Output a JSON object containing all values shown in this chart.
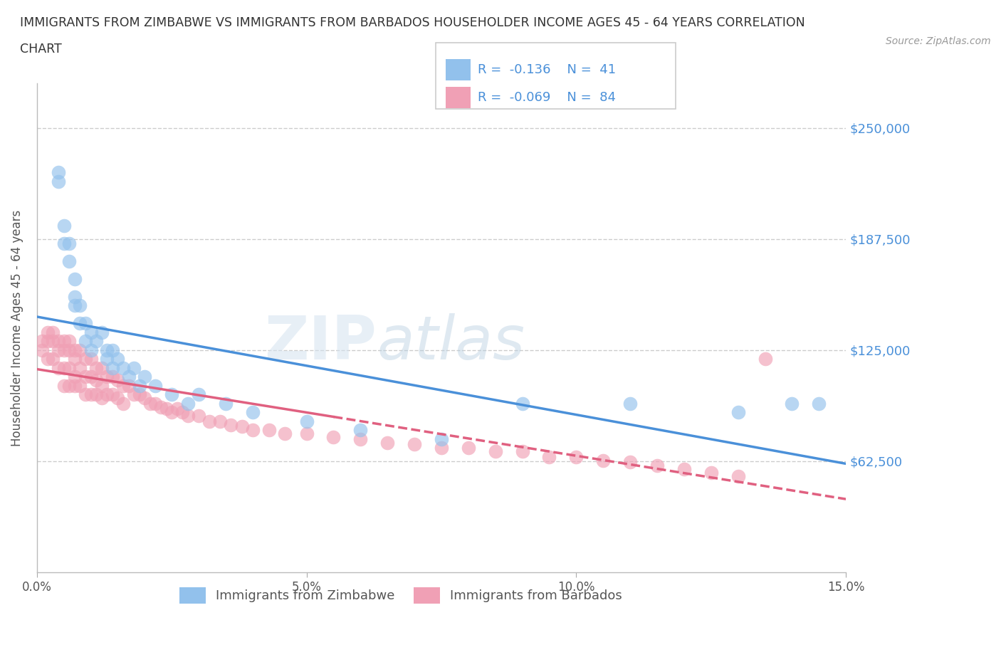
{
  "title_line1": "IMMIGRANTS FROM ZIMBABWE VS IMMIGRANTS FROM BARBADOS HOUSEHOLDER INCOME AGES 45 - 64 YEARS CORRELATION",
  "title_line2": "CHART",
  "source": "Source: ZipAtlas.com",
  "ylabel": "Householder Income Ages 45 - 64 years",
  "xlim": [
    0,
    0.15
  ],
  "ylim": [
    0,
    275000
  ],
  "yticks": [
    62500,
    125000,
    187500,
    250000
  ],
  "ytick_labels": [
    "$62,500",
    "$125,000",
    "$187,500",
    "$250,000"
  ],
  "xticks": [
    0.0,
    0.05,
    0.1,
    0.15
  ],
  "xtick_labels": [
    "0.0%",
    "5.0%",
    "10.0%",
    "15.0%"
  ],
  "color_zimbabwe": "#92C1EC",
  "color_barbados": "#F0A0B5",
  "trendline_color_zimbabwe": "#4A90D9",
  "trendline_color_barbados": "#E06080",
  "watermark_zip": "ZIP",
  "watermark_atlas": "atlas",
  "background_color": "#ffffff",
  "grid_color": "#cccccc",
  "legend_text_color": "#4A90D9",
  "zimbabwe_x": [
    0.004,
    0.004,
    0.005,
    0.005,
    0.006,
    0.006,
    0.007,
    0.007,
    0.007,
    0.008,
    0.008,
    0.009,
    0.009,
    0.01,
    0.01,
    0.011,
    0.012,
    0.013,
    0.013,
    0.014,
    0.014,
    0.015,
    0.016,
    0.017,
    0.018,
    0.019,
    0.02,
    0.022,
    0.025,
    0.028,
    0.03,
    0.035,
    0.04,
    0.05,
    0.06,
    0.075,
    0.09,
    0.11,
    0.13,
    0.14,
    0.145
  ],
  "zimbabwe_y": [
    225000,
    220000,
    195000,
    185000,
    185000,
    175000,
    165000,
    155000,
    150000,
    150000,
    140000,
    140000,
    130000,
    135000,
    125000,
    130000,
    135000,
    125000,
    120000,
    125000,
    115000,
    120000,
    115000,
    110000,
    115000,
    105000,
    110000,
    105000,
    100000,
    95000,
    100000,
    95000,
    90000,
    85000,
    80000,
    75000,
    95000,
    95000,
    90000,
    95000,
    95000
  ],
  "barbados_x": [
    0.001,
    0.001,
    0.002,
    0.002,
    0.002,
    0.003,
    0.003,
    0.003,
    0.004,
    0.004,
    0.004,
    0.005,
    0.005,
    0.005,
    0.005,
    0.006,
    0.006,
    0.006,
    0.006,
    0.007,
    0.007,
    0.007,
    0.007,
    0.008,
    0.008,
    0.008,
    0.009,
    0.009,
    0.009,
    0.01,
    0.01,
    0.01,
    0.011,
    0.011,
    0.011,
    0.012,
    0.012,
    0.012,
    0.013,
    0.013,
    0.014,
    0.014,
    0.015,
    0.015,
    0.016,
    0.016,
    0.017,
    0.018,
    0.019,
    0.02,
    0.021,
    0.022,
    0.023,
    0.024,
    0.025,
    0.026,
    0.027,
    0.028,
    0.03,
    0.032,
    0.034,
    0.036,
    0.038,
    0.04,
    0.043,
    0.046,
    0.05,
    0.055,
    0.06,
    0.065,
    0.07,
    0.075,
    0.08,
    0.085,
    0.09,
    0.095,
    0.1,
    0.105,
    0.11,
    0.115,
    0.12,
    0.125,
    0.13,
    0.135
  ],
  "barbados_y": [
    130000,
    125000,
    135000,
    130000,
    120000,
    135000,
    130000,
    120000,
    130000,
    125000,
    115000,
    130000,
    125000,
    115000,
    105000,
    130000,
    125000,
    115000,
    105000,
    125000,
    120000,
    110000,
    105000,
    125000,
    115000,
    105000,
    120000,
    110000,
    100000,
    120000,
    110000,
    100000,
    115000,
    108000,
    100000,
    115000,
    105000,
    98000,
    110000,
    100000,
    110000,
    100000,
    108000,
    98000,
    105000,
    95000,
    105000,
    100000,
    100000,
    98000,
    95000,
    95000,
    93000,
    92000,
    90000,
    92000,
    90000,
    88000,
    88000,
    85000,
    85000,
    83000,
    82000,
    80000,
    80000,
    78000,
    78000,
    76000,
    75000,
    73000,
    72000,
    70000,
    70000,
    68000,
    68000,
    65000,
    65000,
    63000,
    62000,
    60000,
    58000,
    56000,
    54000,
    120000
  ]
}
